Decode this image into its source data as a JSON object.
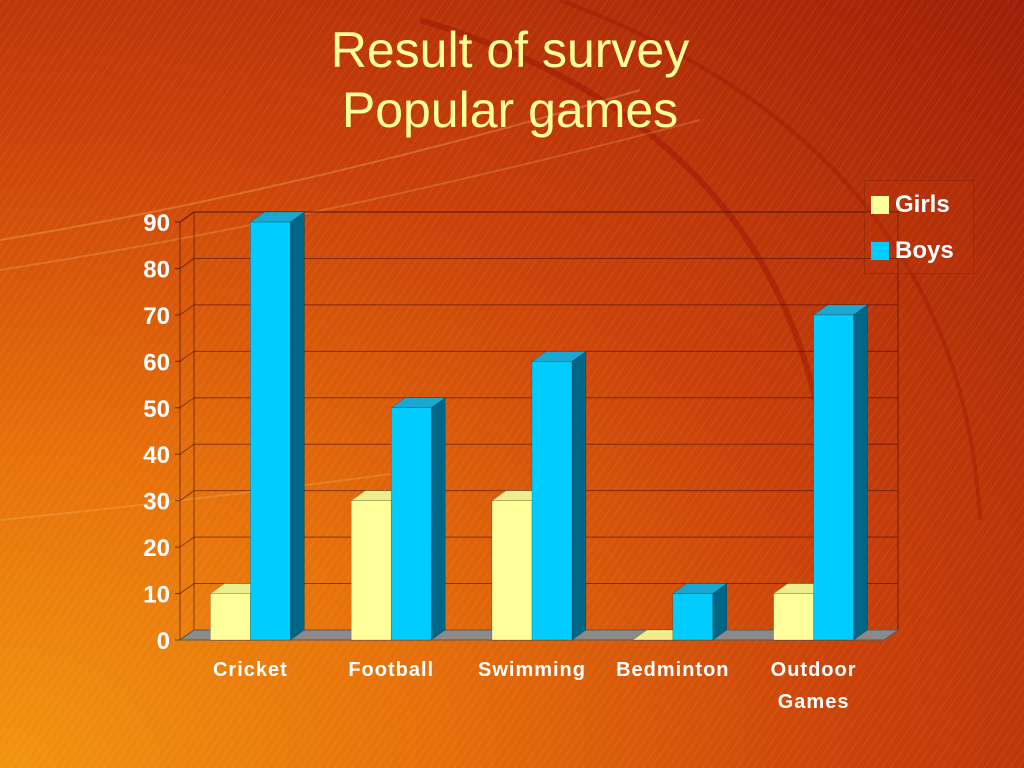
{
  "title_line1": "Result of survey",
  "title_line2": "Popular games",
  "chart_data": {
    "type": "bar",
    "categories": [
      "Cricket",
      "Football",
      "Swimming",
      "Bedminton",
      "Outdoor Games"
    ],
    "category_lines": [
      [
        "Cricket"
      ],
      [
        "Football"
      ],
      [
        "Swimming"
      ],
      [
        "Bedminton"
      ],
      [
        "Outdoor",
        "Games"
      ]
    ],
    "series": [
      {
        "name": "Girls",
        "values": [
          10,
          30,
          30,
          0,
          10
        ],
        "color": "#ffff99",
        "side": "#d8d878",
        "top": "#eeee8c"
      },
      {
        "name": "Boys",
        "values": [
          90,
          50,
          60,
          10,
          70
        ],
        "color": "#00ccff",
        "side": "#006688",
        "top": "#1aa8d0"
      }
    ],
    "ylim": [
      0,
      90
    ],
    "yticks": [
      0,
      10,
      20,
      30,
      40,
      50,
      60,
      70,
      80,
      90
    ],
    "grid": true,
    "legend": "top-right",
    "style": "3d-clustered-column"
  }
}
